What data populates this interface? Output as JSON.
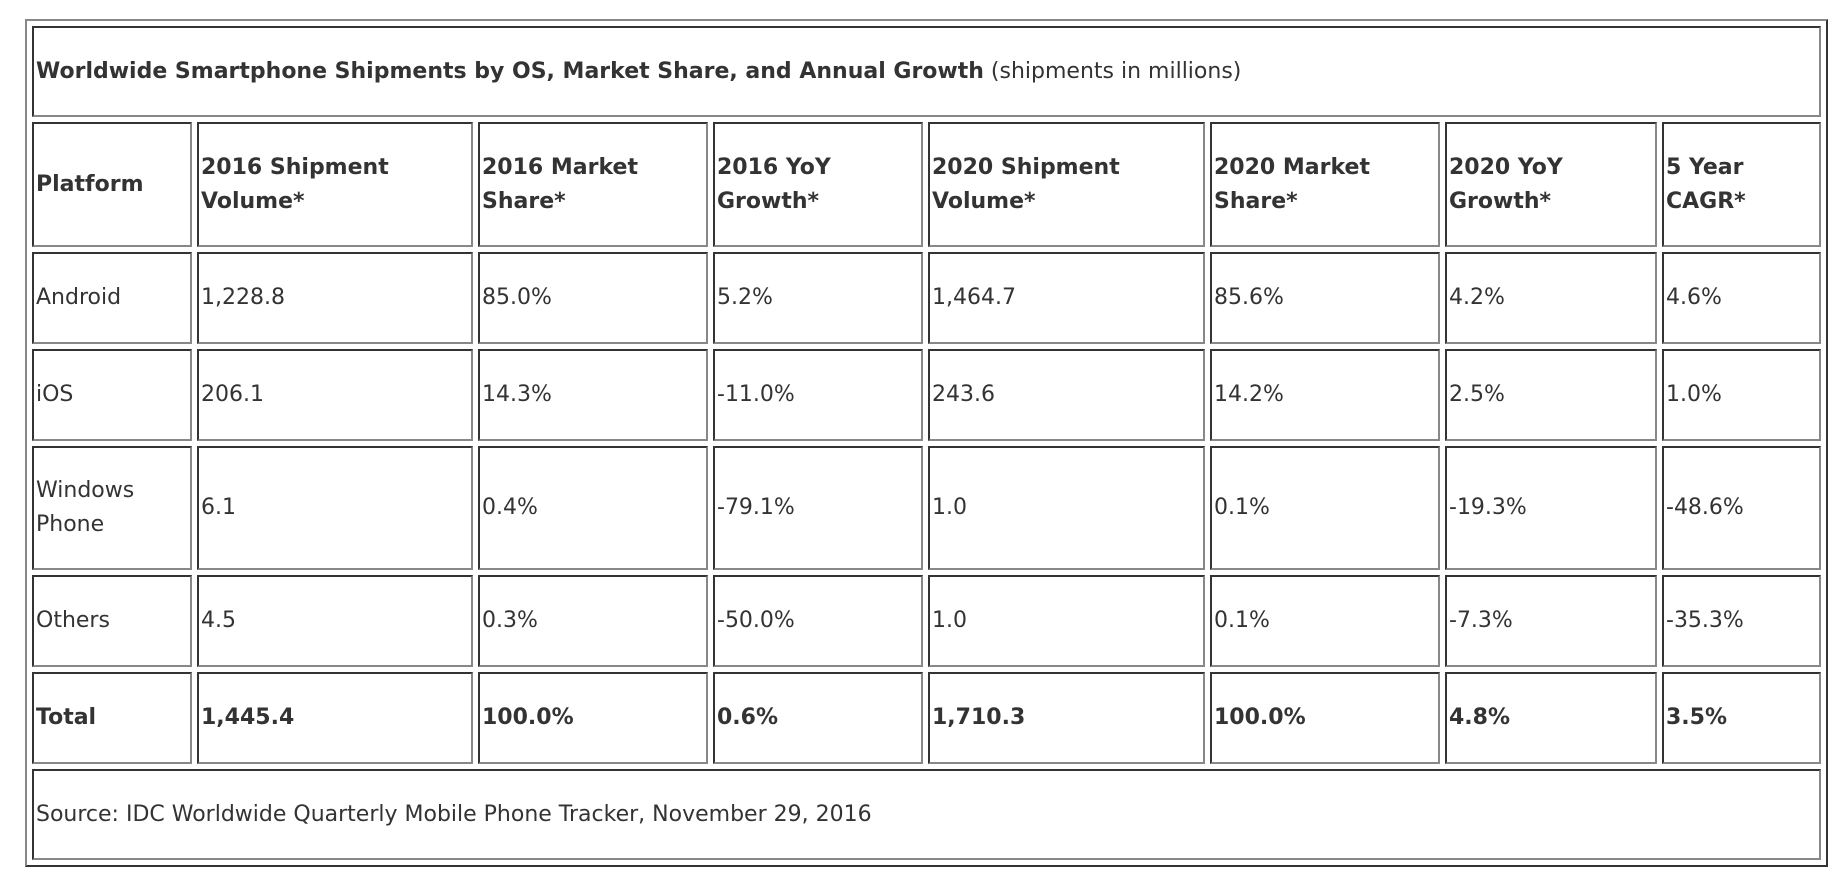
{
  "title": {
    "bold": "Worldwide Smartphone Shipments by OS, Market Share, and Annual Growth",
    "note": " (shipments in millions)"
  },
  "headers": [
    "Platform",
    "2016 Shipment Volume*",
    "2016 Market Share*",
    "2016 YoY Growth*",
    "2020 Shipment Volume*",
    "2020 Market Share*",
    "2020 YoY Growth*",
    "5 Year CAGR*"
  ],
  "rows": [
    [
      "Android",
      "1,228.8",
      "85.0%",
      "5.2%",
      "1,464.7",
      "85.6%",
      "4.2%",
      "4.6%"
    ],
    [
      "iOS",
      "206.1",
      "14.3%",
      "-11.0%",
      "243.6",
      "14.2%",
      "2.5%",
      "1.0%"
    ],
    [
      "Windows Phone",
      "6.1",
      "0.4%",
      "-79.1%",
      "1.0",
      "0.1%",
      "-19.3%",
      "-48.6%"
    ],
    [
      "Others",
      "4.5",
      "0.3%",
      "-50.0%",
      "1.0",
      "0.1%",
      "-7.3%",
      "-35.3%"
    ]
  ],
  "total": [
    "Total",
    "1,445.4",
    "100.0%",
    "0.6%",
    "1,710.3",
    "100.0%",
    "4.8%",
    "3.5%"
  ],
  "source": "Source: IDC Worldwide Quarterly Mobile Phone Tracker, November 29, 2016"
}
